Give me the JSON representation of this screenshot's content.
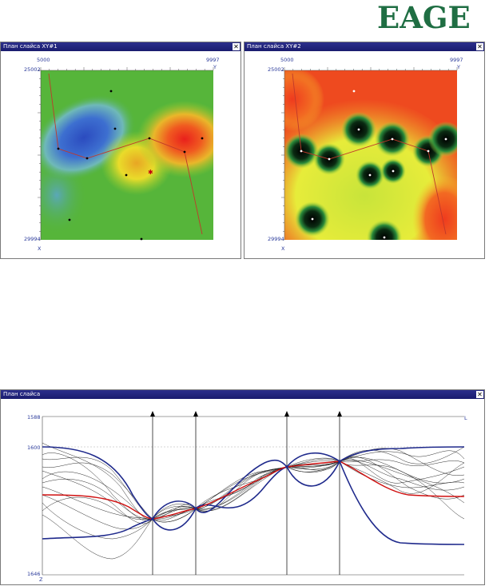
{
  "logo": {
    "text": "EAGE"
  },
  "window1": {
    "title": "План слайса XY#1",
    "close_glyph": "✕",
    "y_min": "5000",
    "y_max": "9997",
    "y_axis": "Y",
    "x_min": "25002",
    "x_max": "29994",
    "x_axis": "X"
  },
  "window2": {
    "title": "План слайса XY#2",
    "close_glyph": "✕",
    "y_min": "5000",
    "y_max": "9997",
    "y_axis": "Y",
    "x_min": "25002",
    "x_max": "29994",
    "x_axis": "X"
  },
  "window3": {
    "title": "План слайса",
    "close_glyph": "✕",
    "z_top": "1588",
    "z_ref": "1600",
    "z_bottom": "1646",
    "z_axis": "Z",
    "l_axis": "L"
  },
  "colors": {
    "title_bar": "#1f2282",
    "well_path": "#c0392b",
    "envelope": "#1f2a8c",
    "mean_trace": "#d01010",
    "logo": "#1f6e43"
  }
}
